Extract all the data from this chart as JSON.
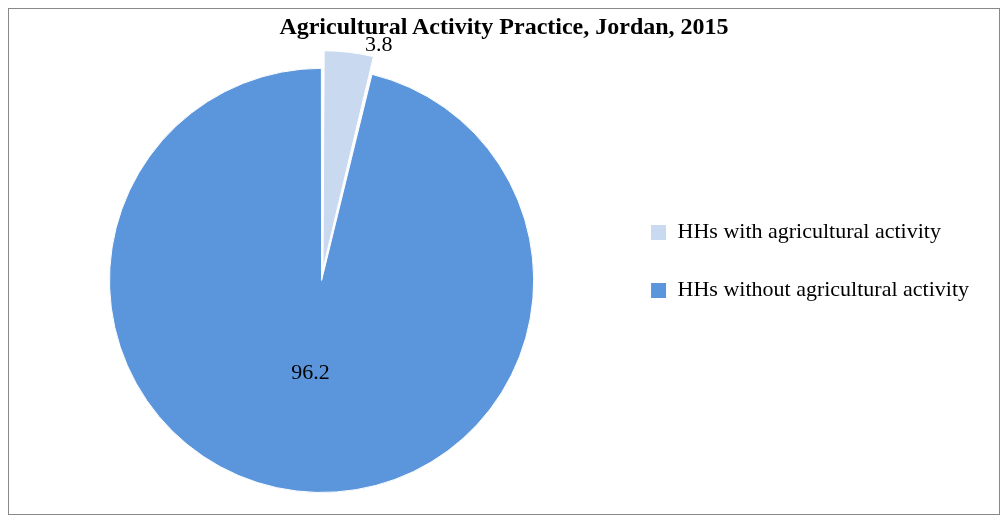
{
  "chart_data": {
    "type": "pie",
    "title": "Agricultural Activity Practice, Jordan, 2015",
    "categories": [
      "HHs with agricultural activity",
      "HHs without agricultural activity"
    ],
    "values": [
      3.8,
      96.2
    ],
    "colors": [
      "#c9d9ef",
      "#5b96dc"
    ],
    "legend": "right",
    "data_labels": true
  }
}
